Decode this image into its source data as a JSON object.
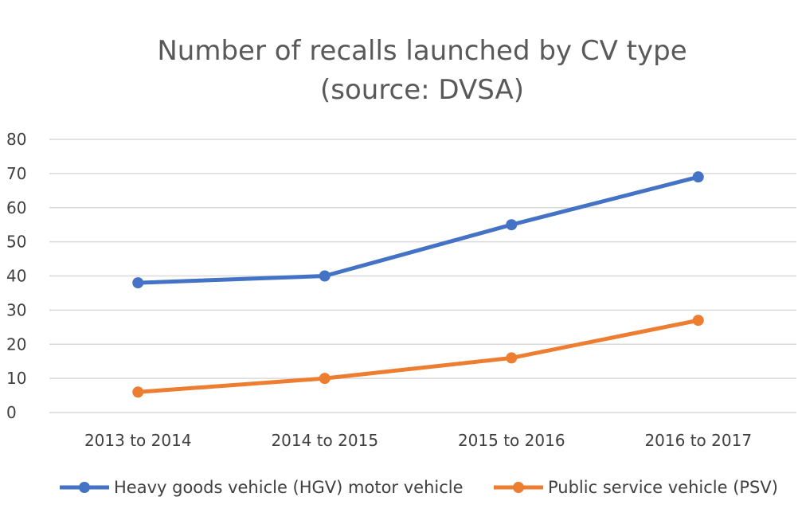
{
  "chart_data": {
    "type": "line",
    "title": "Number of recalls launched by CV type",
    "subtitle": "(source: DVSA)",
    "categories": [
      "2013 to 2014",
      "2014 to 2015",
      "2015 to 2016",
      "2016 to 2017"
    ],
    "series": [
      {
        "name": "Heavy goods vehicle (HGV) motor vehicle",
        "values": [
          38,
          40,
          55,
          69
        ],
        "color": "#4472c4"
      },
      {
        "name": "Public service vehicle (PSV)",
        "values": [
          6,
          10,
          16,
          27
        ],
        "color": "#ed7d31"
      }
    ],
    "ylim": [
      0,
      80
    ],
    "yticks": [
      "0",
      "10",
      "20",
      "30",
      "40",
      "50",
      "60",
      "70",
      "80"
    ],
    "grid": true,
    "legend": "bottom"
  }
}
